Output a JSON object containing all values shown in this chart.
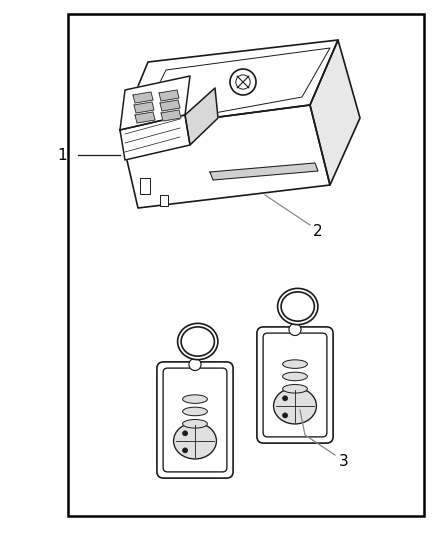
{
  "background_color": "#ffffff",
  "border_color": "#000000",
  "line_color": "#1a1a1a",
  "label_color": "#000000",
  "label_1": "1",
  "label_2": "2",
  "label_3": "3"
}
